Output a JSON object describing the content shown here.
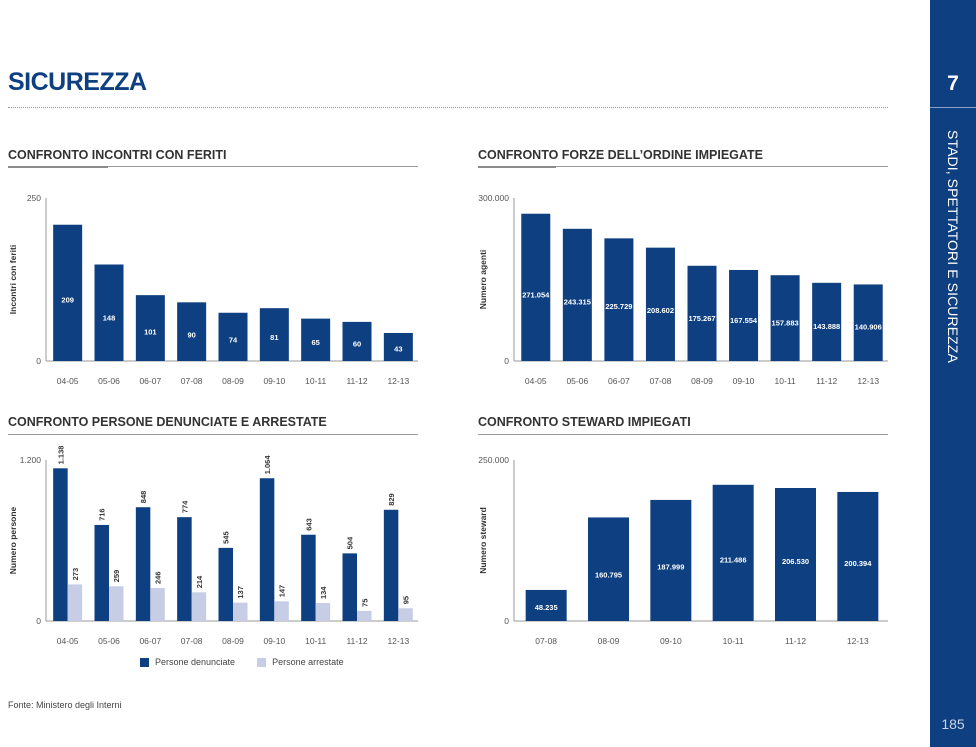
{
  "page": {
    "title": "SICUREZZA",
    "chapter_number": "7",
    "chapter_title": "STADI, SPETTATORI E SICUREZZA",
    "page_number": "185",
    "source": "Fonte: Ministero degli Interni"
  },
  "colors": {
    "primary": "#0e3f80",
    "secondary": "#c8cde6",
    "axis": "#999999",
    "tick_text": "#555555"
  },
  "chart_data": [
    {
      "id": "incontri",
      "type": "bar",
      "title": "CONFRONTO INCONTRI CON FERITI",
      "xlabel": "",
      "ylabel": "Incontri con feriti",
      "categories": [
        "04-05",
        "05-06",
        "06-07",
        "07-08",
        "08-09",
        "09-10",
        "10-11",
        "11-12",
        "12-13"
      ],
      "values": [
        209,
        148,
        101,
        90,
        74,
        81,
        65,
        60,
        43
      ],
      "value_labels": [
        "209",
        "148",
        "101",
        "90",
        "74",
        "81",
        "65",
        "60",
        "43"
      ],
      "ylim": [
        0,
        250
      ],
      "y_tick_labels": [
        "0",
        "250"
      ],
      "grid": false
    },
    {
      "id": "forze",
      "type": "bar",
      "title": "CONFRONTO FORZE DELL’ORDINE IMPIEGATE",
      "xlabel": "",
      "ylabel": "Numero agenti",
      "categories": [
        "04-05",
        "05-06",
        "06-07",
        "07-08",
        "08-09",
        "09-10",
        "10-11",
        "11-12",
        "12-13"
      ],
      "values": [
        271054,
        243315,
        225729,
        208602,
        175267,
        167554,
        157883,
        143888,
        140906
      ],
      "value_labels": [
        "271.054",
        "243.315",
        "225.729",
        "208.602",
        "175.267",
        "167.554",
        "157.883",
        "143.888",
        "140.906"
      ],
      "ylim": [
        0,
        300000
      ],
      "y_tick_labels": [
        "0",
        "300.000"
      ],
      "grid": false
    },
    {
      "id": "persone",
      "type": "bar",
      "title": "CONFRONTO PERSONE DENUNCIATE E ARRESTATE",
      "xlabel": "",
      "ylabel": "Numero persone",
      "categories": [
        "04-05",
        "05-06",
        "06-07",
        "07-08",
        "08-09",
        "09-10",
        "10-11",
        "11-12",
        "12-13"
      ],
      "series": [
        {
          "name": "Persone denunciate",
          "values": [
            1138,
            716,
            848,
            774,
            545,
            1064,
            643,
            504,
            829
          ],
          "value_labels": [
            "1.138",
            "716",
            "848",
            "774",
            "545",
            "1.064",
            "643",
            "504",
            "829"
          ]
        },
        {
          "name": "Persone arrestate",
          "values": [
            273,
            259,
            246,
            214,
            137,
            147,
            134,
            75,
            95
          ],
          "value_labels": [
            "273",
            "259",
            "246",
            "214",
            "137",
            "147",
            "134",
            "75",
            "95"
          ]
        }
      ],
      "ylim": [
        0,
        1200
      ],
      "y_tick_labels": [
        "0",
        "1.200"
      ],
      "legend": "bottom-center",
      "grid": false
    },
    {
      "id": "steward",
      "type": "bar",
      "title": "CONFRONTO STEWARD IMPIEGATI",
      "xlabel": "",
      "ylabel": "Numero steward",
      "categories": [
        "07-08",
        "08-09",
        "09-10",
        "10-11",
        "11-12",
        "12-13"
      ],
      "values": [
        48235,
        160795,
        187999,
        211486,
        206530,
        200394
      ],
      "value_labels": [
        "48.235",
        "160.795",
        "187.999",
        "211.486",
        "206.530",
        "200.394"
      ],
      "ylim": [
        0,
        250000
      ],
      "y_tick_labels": [
        "0",
        "250.000"
      ],
      "grid": false
    }
  ]
}
